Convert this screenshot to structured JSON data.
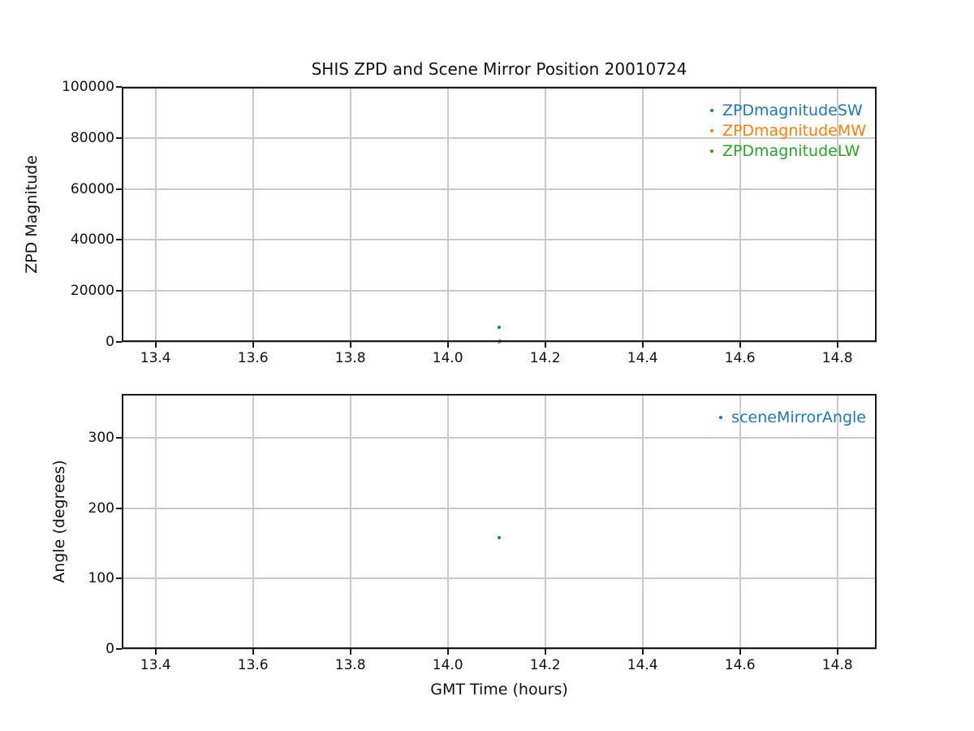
{
  "figure": {
    "title": "SHIS ZPD and Scene Mirror Position 20010724",
    "background": "#ffffff"
  },
  "styles": {
    "grid_color": "#c9c9c9",
    "spine_color": "#1a1a1a",
    "text_color": "#111111",
    "series_blue": "#1f77b4",
    "series_orange": "#ff7f0e",
    "series_green": "#2ca02c"
  },
  "chart_data": [
    {
      "type": "scatter",
      "title": "SHIS ZPD and Scene Mirror Position 20010724",
      "xlabel": "",
      "ylabel": "ZPD Magnitude",
      "xlim": [
        13.3305,
        14.8805
      ],
      "ylim": [
        0,
        100000
      ],
      "grid": true,
      "legend_position": "upper right",
      "legend_frame": false,
      "xticks": {
        "values": [
          13.4,
          13.6,
          13.8,
          14.0,
          14.2,
          14.4,
          14.6,
          14.8
        ],
        "labels": [
          "13.4",
          "13.6",
          "13.8",
          "14.0",
          "14.2",
          "14.4",
          "14.6",
          "14.8"
        ]
      },
      "yticks": {
        "values": [
          0,
          20000,
          40000,
          60000,
          80000,
          100000
        ],
        "labels": [
          "0",
          "20000",
          "40000",
          "60000",
          "80000",
          "100000"
        ]
      },
      "series": [
        {
          "name": "ZPDmagnitudeSW",
          "color": "#1f77b4",
          "marker": "point",
          "points": [
            {
              "x": 14.105,
              "y": 5700
            }
          ]
        },
        {
          "name": "ZPDmagnitudeMW",
          "color": "#ff7f0e",
          "marker": "point",
          "points": [
            {
              "x": 14.106,
              "y": 0
            }
          ]
        },
        {
          "name": "ZPDmagnitudeLW",
          "color": "#2ca02c",
          "marker": "point",
          "points": [
            {
              "x": 14.107,
              "y": 300
            }
          ]
        }
      ]
    },
    {
      "type": "scatter",
      "title": "",
      "xlabel": "GMT Time (hours)",
      "ylabel": "Angle (degrees)",
      "xlim": [
        13.3305,
        14.8805
      ],
      "ylim": [
        0,
        362
      ],
      "grid": true,
      "legend_position": "upper right",
      "legend_frame": false,
      "xticks": {
        "values": [
          13.4,
          13.6,
          13.8,
          14.0,
          14.2,
          14.4,
          14.6,
          14.8
        ],
        "labels": [
          "13.4",
          "13.6",
          "13.8",
          "14.0",
          "14.2",
          "14.4",
          "14.6",
          "14.8"
        ]
      },
      "yticks": {
        "values": [
          0,
          100,
          200,
          300
        ],
        "labels": [
          "0",
          "100",
          "200",
          "300"
        ]
      },
      "series": [
        {
          "name": "sceneMirrorAngle",
          "color": "#1f77b4",
          "marker": "point",
          "points": [
            {
              "x": 14.106,
              "y": 158
            }
          ]
        }
      ]
    }
  ]
}
